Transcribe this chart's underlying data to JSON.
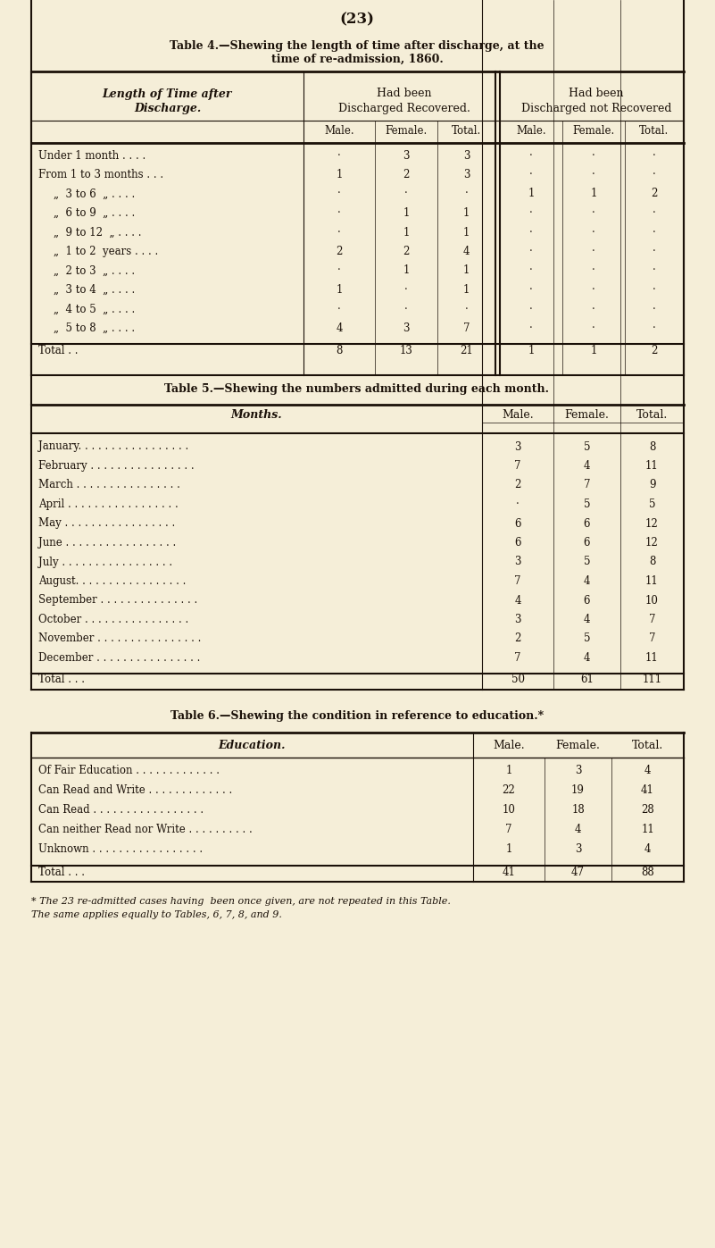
{
  "bg_color": "#f5eed8",
  "text_color": "#1a1008",
  "page_number": "(23)",
  "table4": {
    "title_line1": "Table 4.—Shewing the length of time after discharge, at the",
    "title_line2": "time of re-admission, 1860.",
    "col_header1_line1": "Length of Time after",
    "col_header1_line2": "Discharge.",
    "col_header2_line1": "Had been",
    "col_header2_line2": "Discharged Recovered.",
    "col_header3_line1": "Had been",
    "col_header3_line2": "Discharged not Recovered",
    "sub_headers": [
      "Male.",
      "Female.",
      "Total.",
      "Male.",
      "Female.",
      "Total."
    ],
    "rows": [
      [
        "Under 1 month . . . .",
        "·",
        "3",
        "3",
        "·",
        "·",
        "·"
      ],
      [
        "From 1 to 3 months . . .",
        "1",
        "2",
        "3",
        "·",
        "·",
        "·"
      ],
      [
        "„  3 to 6  „ . . . .",
        "·",
        "·",
        "·",
        "1",
        "1",
        "2"
      ],
      [
        "„  6 to 9  „ . . . .",
        "·",
        "1",
        "1",
        "·",
        "·",
        "·"
      ],
      [
        "„  9 to 12  „ . . . .",
        "·",
        "1",
        "1",
        "·",
        "·",
        "·"
      ],
      [
        "„  1 to 2  years . . . .",
        "2",
        "2",
        "4",
        "·",
        "·",
        "·"
      ],
      [
        "„  2 to 3  „ . . . .",
        "·",
        "1",
        "1",
        "·",
        "·",
        "·"
      ],
      [
        "„  3 to 4  „ . . . .",
        "1",
        "·",
        "1",
        "·",
        "·",
        "·"
      ],
      [
        "„  4 to 5  „ . . . .",
        "·",
        "·",
        "·",
        "·",
        "·",
        "·"
      ],
      [
        "„  5 to 8  „ . . . .",
        "4",
        "3",
        "7",
        "·",
        "·",
        "·"
      ],
      [
        "Total . .",
        "8",
        "13",
        "21",
        "1",
        "1",
        "2"
      ]
    ]
  },
  "table5": {
    "title": "Table 5.—Shewing the numbers admitted during each month.",
    "col_headers": [
      "Months.",
      "Male.",
      "Female.",
      "Total."
    ],
    "rows": [
      [
        "January. . . . . . . . . . . . . . . . .",
        "3",
        "5",
        "8"
      ],
      [
        "February . . . . . . . . . . . . . . . .",
        "7",
        "4",
        "11"
      ],
      [
        "March . . . . . . . . . . . . . . . .",
        "2",
        "7",
        "9"
      ],
      [
        "April . . . . . . . . . . . . . . . . .",
        "·",
        "5",
        "5"
      ],
      [
        "May . . . . . . . . . . . . . . . . .",
        "6",
        "6",
        "12"
      ],
      [
        "June . . . . . . . . . . . . . . . . .",
        "6",
        "6",
        "12"
      ],
      [
        "July . . . . . . . . . . . . . . . . .",
        "3",
        "5",
        "8"
      ],
      [
        "August. . . . . . . . . . . . . . . . .",
        "7",
        "4",
        "11"
      ],
      [
        "September . . . . . . . . . . . . . . .",
        "4",
        "6",
        "10"
      ],
      [
        "October . . . . . . . . . . . . . . . .",
        "3",
        "4",
        "7"
      ],
      [
        "November . . . . . . . . . . . . . . . .",
        "2",
        "5",
        "7"
      ],
      [
        "December . . . . . . . . . . . . . . . .",
        "7",
        "4",
        "11"
      ],
      [
        "Total . . .",
        "50",
        "61",
        "111"
      ]
    ]
  },
  "table6": {
    "title_line1": "Table 6.—Shewing the condition in reference to education.*",
    "col_headers": [
      "Education.",
      "Male.",
      "Female.",
      "Total."
    ],
    "rows": [
      [
        "Of Fair Education . . . . . . . . . . . . .",
        "1",
        "3",
        "4"
      ],
      [
        "Can Read and Write . . . . . . . . . . . . .",
        "22",
        "19",
        "41"
      ],
      [
        "Can Read . . . . . . . . . . . . . . . . .",
        "10",
        "18",
        "28"
      ],
      [
        "Can neither Read nor Write . . . . . . . . . .",
        "7",
        "4",
        "11"
      ],
      [
        "Unknown . . . . . . . . . . . . . . . . .",
        "1",
        "3",
        "4"
      ],
      [
        "Total . . .",
        "41",
        "47",
        "88"
      ]
    ],
    "footnote1": "* The 23 re-admitted cases having  been once given, are not repeated in this Table.",
    "footnote2": "The same applies equally to Tables, 6, 7, 8, and 9."
  }
}
